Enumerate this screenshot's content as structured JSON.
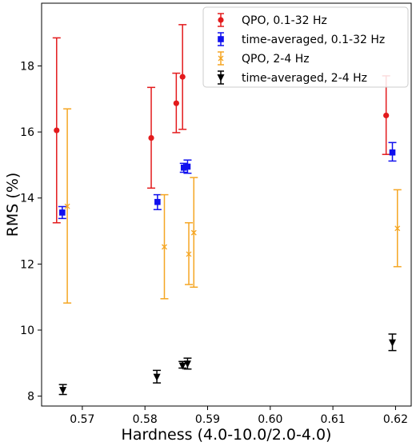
{
  "chart_data": {
    "type": "scatter",
    "title": "",
    "xlabel": "Hardness (4.0-10.0/2.0-4.0)",
    "ylabel": "RMS (%)",
    "xlim": [
      0.5635,
      0.6225
    ],
    "ylim": [
      7.7,
      19.9
    ],
    "xticks": [
      0.57,
      0.58,
      0.59,
      0.6,
      0.61,
      0.62
    ],
    "xtick_labels": [
      "0.57",
      "0.58",
      "0.59",
      "0.60",
      "0.61",
      "0.62"
    ],
    "yticks": [
      8,
      10,
      12,
      14,
      16,
      18
    ],
    "ytick_labels": [
      "8",
      "10",
      "12",
      "14",
      "16",
      "18"
    ],
    "grid": false,
    "legend_position": "top-right",
    "series": [
      {
        "name": "QPO, 0.1-32 Hz",
        "color": "#e31a1c",
        "marker": "circle",
        "points": [
          {
            "x": 0.5659,
            "y": 16.05,
            "lo": 13.25,
            "hi": 18.85
          },
          {
            "x": 0.581,
            "y": 15.82,
            "lo": 14.3,
            "hi": 17.35
          },
          {
            "x": 0.585,
            "y": 16.87,
            "lo": 15.98,
            "hi": 17.78
          },
          {
            "x": 0.586,
            "y": 17.67,
            "lo": 16.08,
            "hi": 19.25
          },
          {
            "x": 0.6185,
            "y": 16.5,
            "lo": 15.32,
            "hi": 17.7
          }
        ]
      },
      {
        "name": "time-averaged, 0.1-32 Hz",
        "color": "#1010ee",
        "marker": "square",
        "points": [
          {
            "x": 0.5668,
            "y": 13.56,
            "lo": 13.38,
            "hi": 13.74
          },
          {
            "x": 0.582,
            "y": 13.88,
            "lo": 13.65,
            "hi": 14.1
          },
          {
            "x": 0.5862,
            "y": 14.92,
            "lo": 14.78,
            "hi": 15.05
          },
          {
            "x": 0.5868,
            "y": 14.95,
            "lo": 14.75,
            "hi": 15.15
          },
          {
            "x": 0.6195,
            "y": 15.38,
            "lo": 15.12,
            "hi": 15.68
          }
        ]
      },
      {
        "name": "QPO, 2-4 Hz",
        "color": "#f5a623",
        "marker": "x",
        "points": [
          {
            "x": 0.5676,
            "y": 13.75,
            "lo": 10.82,
            "hi": 16.7
          },
          {
            "x": 0.5831,
            "y": 12.52,
            "lo": 10.95,
            "hi": 14.1
          },
          {
            "x": 0.587,
            "y": 12.3,
            "lo": 11.38,
            "hi": 13.25
          },
          {
            "x": 0.5878,
            "y": 12.95,
            "lo": 11.3,
            "hi": 14.62
          },
          {
            "x": 0.6203,
            "y": 13.08,
            "lo": 11.92,
            "hi": 14.25
          }
        ]
      },
      {
        "name": "time-averaged, 2-4 Hz",
        "color": "#000000",
        "marker": "triangle-down",
        "points": [
          {
            "x": 0.5669,
            "y": 8.18,
            "lo": 8.05,
            "hi": 8.35
          },
          {
            "x": 0.5819,
            "y": 8.58,
            "lo": 8.4,
            "hi": 8.78
          },
          {
            "x": 0.586,
            "y": 8.92,
            "lo": 8.85,
            "hi": 9.05
          },
          {
            "x": 0.5868,
            "y": 8.98,
            "lo": 8.82,
            "hi": 9.15
          },
          {
            "x": 0.6195,
            "y": 9.62,
            "lo": 9.38,
            "hi": 9.88
          }
        ]
      }
    ]
  }
}
